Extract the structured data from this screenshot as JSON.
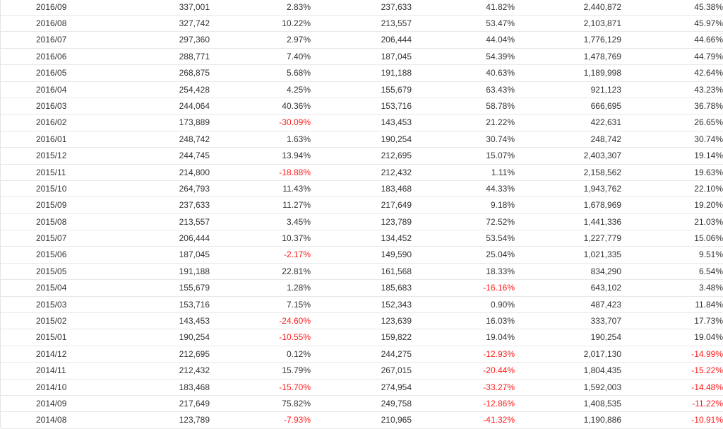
{
  "colors": {
    "negative": "#ff1a1a",
    "text": "#333333",
    "row_border": "#e8e8e8"
  },
  "rows": [
    [
      "2016/09",
      "337,001",
      "2.83%",
      "237,633",
      "41.82%",
      "2,440,872",
      "45.38%"
    ],
    [
      "2016/08",
      "327,742",
      "10.22%",
      "213,557",
      "53.47%",
      "2,103,871",
      "45.97%"
    ],
    [
      "2016/07",
      "297,360",
      "2.97%",
      "206,444",
      "44.04%",
      "1,776,129",
      "44.66%"
    ],
    [
      "2016/06",
      "288,771",
      "7.40%",
      "187,045",
      "54.39%",
      "1,478,769",
      "44.79%"
    ],
    [
      "2016/05",
      "268,875",
      "5.68%",
      "191,188",
      "40.63%",
      "1,189,998",
      "42.64%"
    ],
    [
      "2016/04",
      "254,428",
      "4.25%",
      "155,679",
      "63.43%",
      "921,123",
      "43.23%"
    ],
    [
      "2016/03",
      "244,064",
      "40.36%",
      "153,716",
      "58.78%",
      "666,695",
      "36.78%"
    ],
    [
      "2016/02",
      "173,889",
      "-30.09%",
      "143,453",
      "21.22%",
      "422,631",
      "26.65%"
    ],
    [
      "2016/01",
      "248,742",
      "1.63%",
      "190,254",
      "30.74%",
      "248,742",
      "30.74%"
    ],
    [
      "2015/12",
      "244,745",
      "13.94%",
      "212,695",
      "15.07%",
      "2,403,307",
      "19.14%"
    ],
    [
      "2015/11",
      "214,800",
      "-18.88%",
      "212,432",
      "1.11%",
      "2,158,562",
      "19.63%"
    ],
    [
      "2015/10",
      "264,793",
      "11.43%",
      "183,468",
      "44.33%",
      "1,943,762",
      "22.10%"
    ],
    [
      "2015/09",
      "237,633",
      "11.27%",
      "217,649",
      "9.18%",
      "1,678,969",
      "19.20%"
    ],
    [
      "2015/08",
      "213,557",
      "3.45%",
      "123,789",
      "72.52%",
      "1,441,336",
      "21.03%"
    ],
    [
      "2015/07",
      "206,444",
      "10.37%",
      "134,452",
      "53.54%",
      "1,227,779",
      "15.06%"
    ],
    [
      "2015/06",
      "187,045",
      "-2.17%",
      "149,590",
      "25.04%",
      "1,021,335",
      "9.51%"
    ],
    [
      "2015/05",
      "191,188",
      "22.81%",
      "161,568",
      "18.33%",
      "834,290",
      "6.54%"
    ],
    [
      "2015/04",
      "155,679",
      "1.28%",
      "185,683",
      "-16.16%",
      "643,102",
      "3.48%"
    ],
    [
      "2015/03",
      "153,716",
      "7.15%",
      "152,343",
      "0.90%",
      "487,423",
      "11.84%"
    ],
    [
      "2015/02",
      "143,453",
      "-24.60%",
      "123,639",
      "16.03%",
      "333,707",
      "17.73%"
    ],
    [
      "2015/01",
      "190,254",
      "-10.55%",
      "159,822",
      "19.04%",
      "190,254",
      "19.04%"
    ],
    [
      "2014/12",
      "212,695",
      "0.12%",
      "244,275",
      "-12.93%",
      "2,017,130",
      "-14.99%"
    ],
    [
      "2014/11",
      "212,432",
      "15.79%",
      "267,015",
      "-20.44%",
      "1,804,435",
      "-15.22%"
    ],
    [
      "2014/10",
      "183,468",
      "-15.70%",
      "274,954",
      "-33.27%",
      "1,592,003",
      "-14.48%"
    ],
    [
      "2014/09",
      "217,649",
      "75.82%",
      "249,758",
      "-12.86%",
      "1,408,535",
      "-11.22%"
    ],
    [
      "2014/08",
      "123,789",
      "-7.93%",
      "210,965",
      "-41.32%",
      "1,190,886",
      "-10.91%"
    ]
  ]
}
